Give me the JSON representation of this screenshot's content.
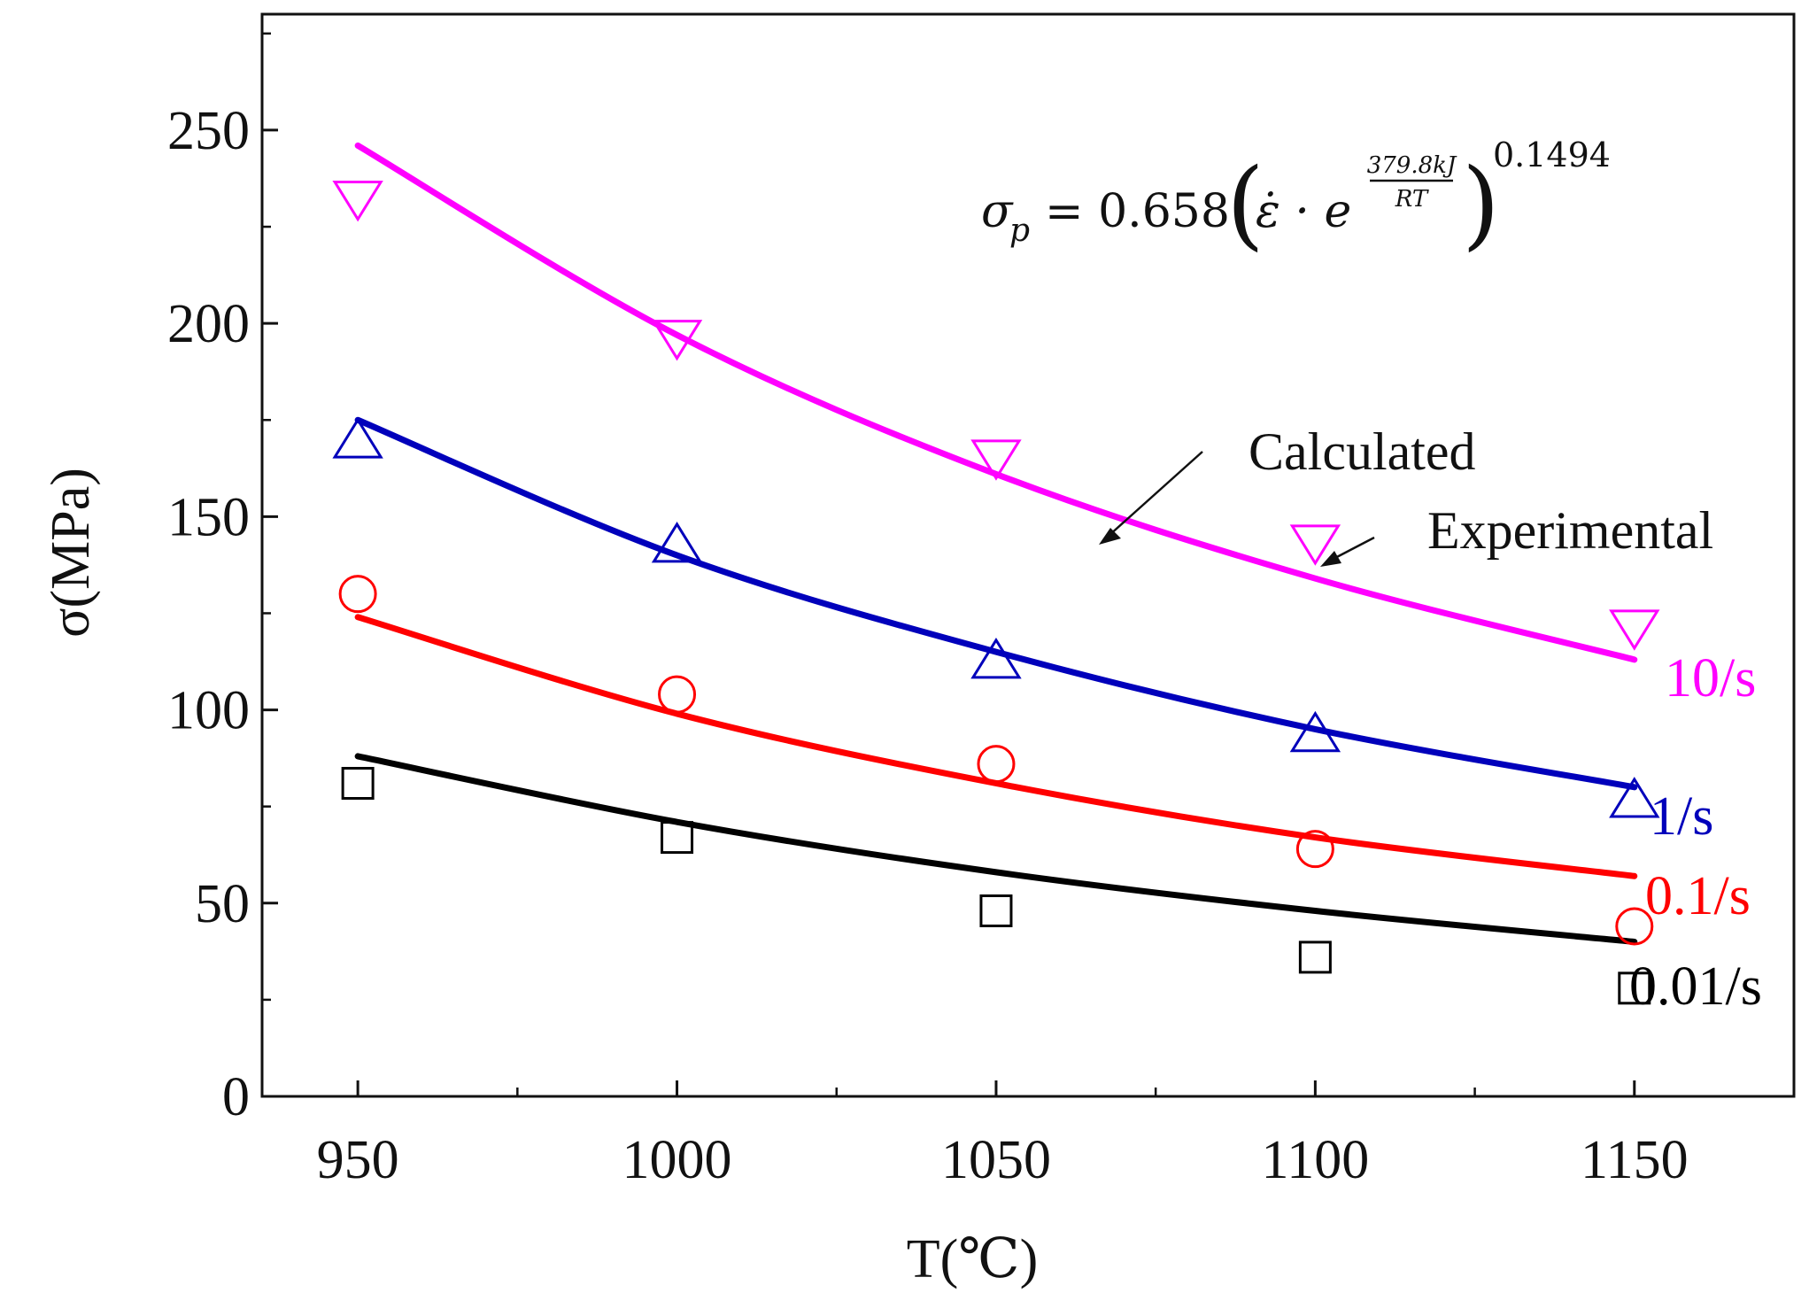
{
  "chart_data": {
    "type": "line",
    "title": "",
    "xlabel": "T(℃)",
    "ylabel": "σ(MPa)",
    "xlim": [
      935,
      1175
    ],
    "ylim": [
      0,
      280
    ],
    "x": [
      950,
      1000,
      1050,
      1100,
      1150
    ],
    "x_tick_labels": [
      "950",
      "1000",
      "1050",
      "1100",
      "1150"
    ],
    "x_minor_ticks": [
      975,
      1025,
      1075,
      1125,
      1175
    ],
    "y_ticks": [
      0,
      50,
      100,
      150,
      200,
      250
    ],
    "y_tick_labels": [
      "0",
      "50",
      "100",
      "150",
      "200",
      "250"
    ],
    "y_minor_ticks": [
      25,
      75,
      125,
      175,
      225,
      275
    ],
    "equation": {
      "lhs": "σ",
      "lhs_sub": "p",
      "rhs_coef": "= 0.658",
      "rate": "ε̇ · e",
      "exp_num": "379.8kJ",
      "exp_den": "RT",
      "power": "0.1494"
    },
    "annotations": {
      "calculated": "Calculated",
      "experimental": "Experimental"
    },
    "series": [
      {
        "name": "10/s",
        "color": "#ff00ff",
        "marker": "triangle-down",
        "calculated": [
          246,
          197,
          161,
          134,
          113
        ],
        "experimental": [
          232,
          196,
          165,
          143,
          121
        ]
      },
      {
        "name": "1/s",
        "color": "#0000bb",
        "marker": "triangle-up",
        "calculated": [
          175,
          140,
          115,
          95,
          80
        ],
        "experimental": [
          170,
          143,
          113,
          94,
          77
        ]
      },
      {
        "name": "0.1/s",
        "color": "#ff0000",
        "marker": "circle",
        "calculated": [
          124,
          99,
          81,
          67,
          57
        ],
        "experimental": [
          130,
          104,
          86,
          64,
          44
        ]
      },
      {
        "name": "0.01/s",
        "color": "#000000",
        "marker": "square",
        "calculated": [
          88,
          71,
          58,
          48,
          40
        ],
        "experimental": [
          81,
          67,
          48,
          36,
          28
        ]
      }
    ]
  }
}
